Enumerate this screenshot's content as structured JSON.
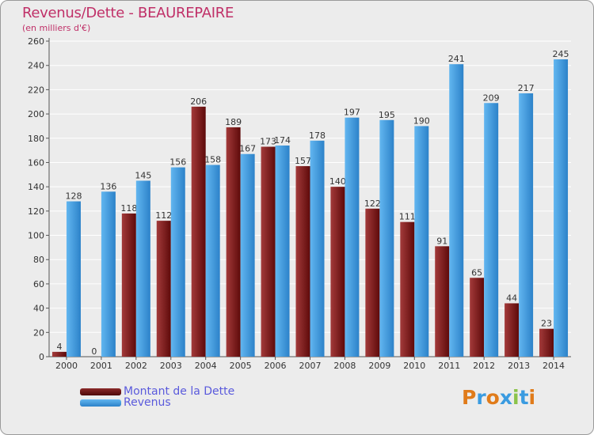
{
  "header": {
    "title": "Revenus/Dette - BEAUREPAIRE",
    "subtitle": "(en milliers d'€)"
  },
  "legend": [
    {
      "label": "Montant de la Dette",
      "color": "#7a1a1a"
    },
    {
      "label": "Revenus",
      "color": "#3a9be0"
    }
  ],
  "logo": {
    "text": "Proxiti",
    "colors": [
      "#e07b1a",
      "#3a9be0",
      "#e07b1a",
      "#3a9be0",
      "#8bc34a",
      "#3a9be0",
      "#e07b1a"
    ]
  },
  "chart_data": {
    "type": "bar",
    "categories": [
      "2000",
      "2001",
      "2002",
      "2003",
      "2004",
      "2005",
      "2006",
      "2007",
      "2008",
      "2009",
      "2010",
      "2011",
      "2012",
      "2013",
      "2014"
    ],
    "series": [
      {
        "name": "Montant de la Dette",
        "color": "#7a1a1a",
        "values": [
          4,
          0,
          118,
          112,
          206,
          189,
          173,
          157,
          140,
          122,
          111,
          91,
          65,
          44,
          23
        ]
      },
      {
        "name": "Revenus",
        "color": "#3a9be0",
        "values": [
          128,
          136,
          145,
          156,
          158,
          167,
          174,
          178,
          197,
          195,
          190,
          241,
          209,
          217,
          245
        ]
      }
    ],
    "ylim": [
      0,
      260
    ],
    "yticks": [
      0,
      20,
      40,
      60,
      80,
      100,
      120,
      140,
      160,
      180,
      200,
      220,
      240,
      260
    ],
    "grid": true,
    "legend_position": "bottom-left"
  }
}
